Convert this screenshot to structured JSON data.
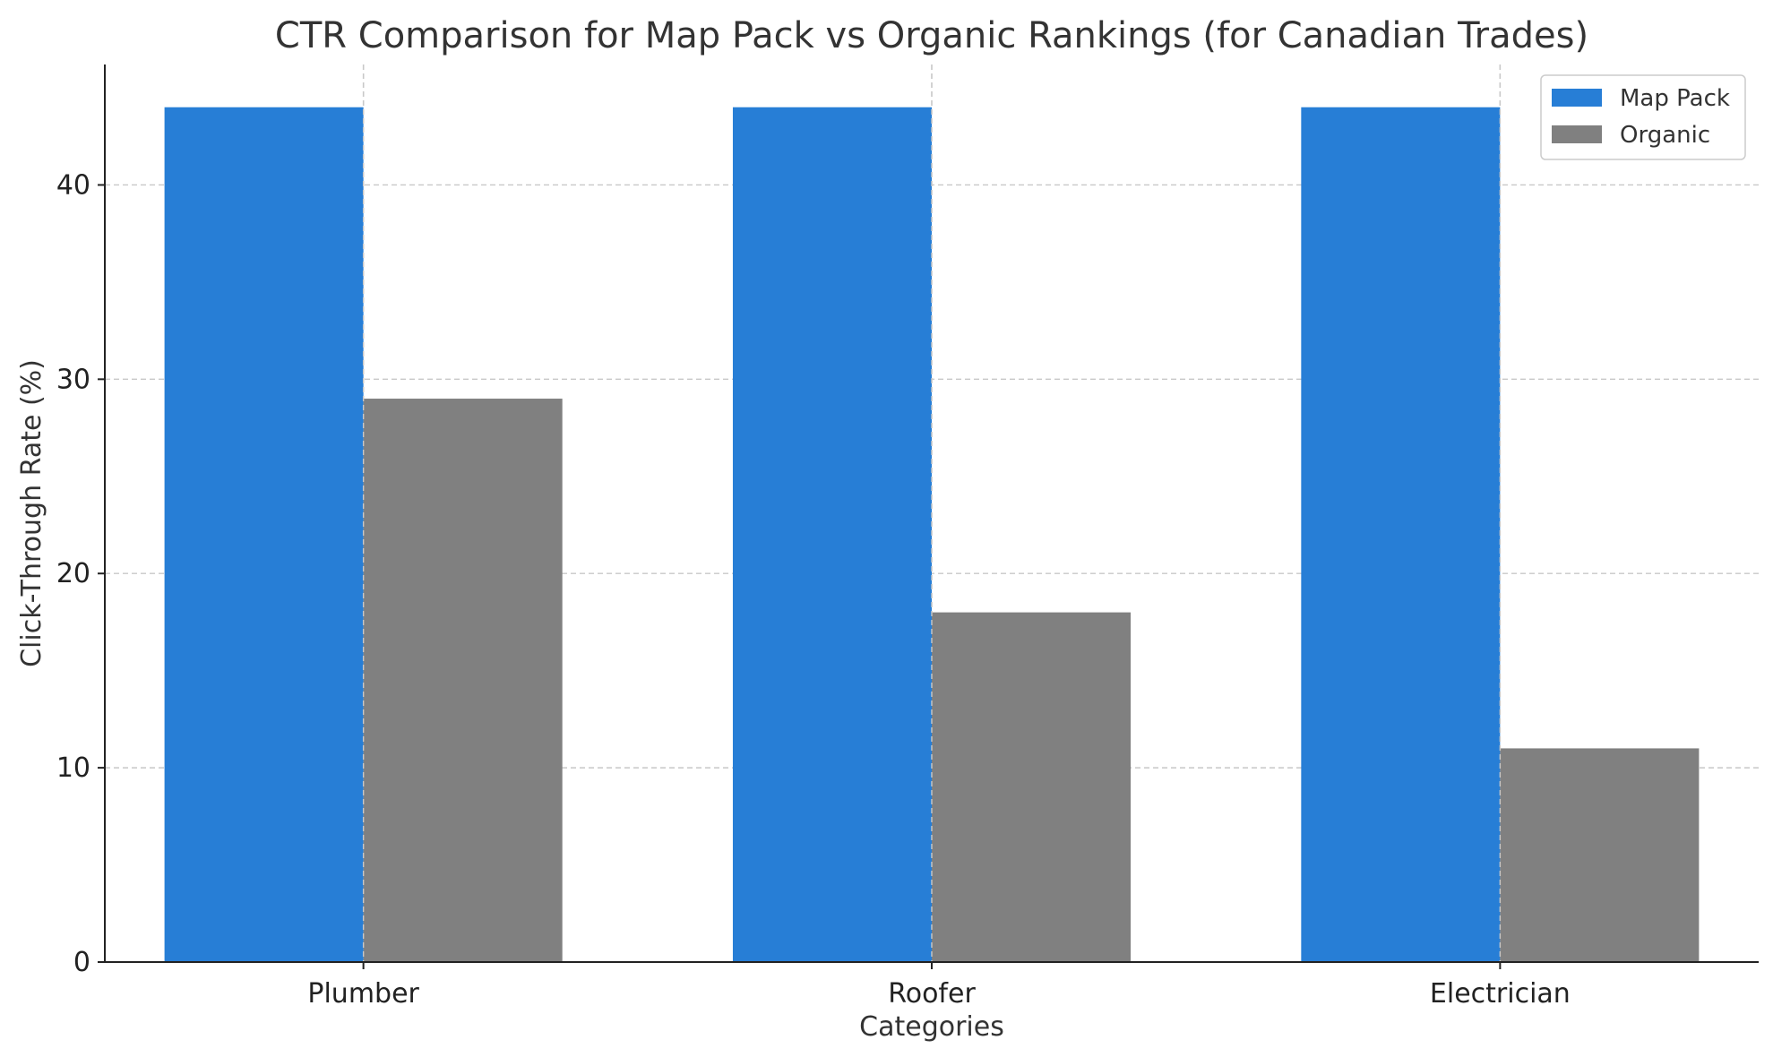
{
  "chart_data": {
    "type": "bar",
    "title": "CTR Comparison for Map Pack vs Organic Rankings (for Canadian Trades)",
    "xlabel": "Categories",
    "ylabel": "Click-Through Rate (%)",
    "categories": [
      "Plumber",
      "Roofer",
      "Electrician"
    ],
    "series": [
      {
        "name": "Map Pack",
        "values": [
          44,
          44,
          44
        ],
        "color": "#277ed6"
      },
      {
        "name": "Organic",
        "values": [
          29,
          18,
          11
        ],
        "color": "#808080"
      }
    ],
    "ylim": [
      0,
      46.2
    ],
    "yticks": [
      0,
      10,
      20,
      30,
      40
    ],
    "grid": true,
    "legend_position": "top-right"
  }
}
